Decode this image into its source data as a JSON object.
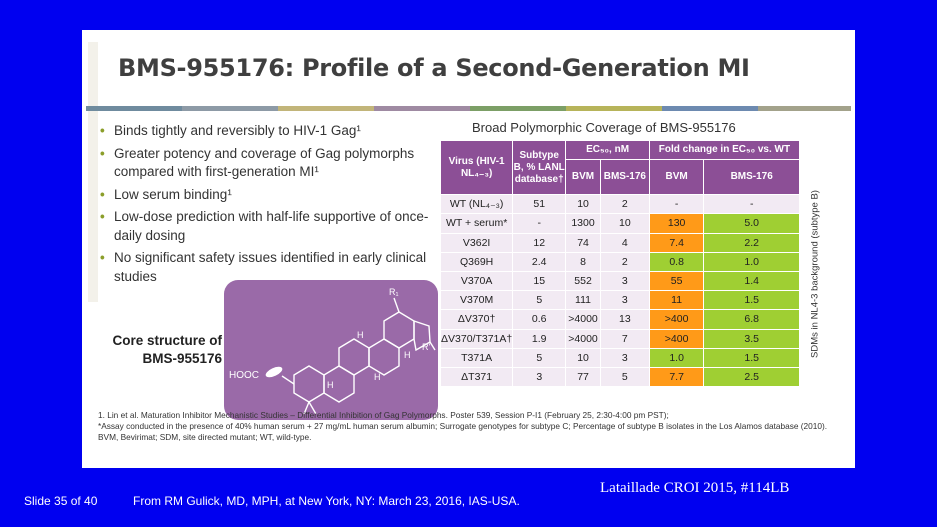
{
  "slide": {
    "title": "BMS-955176: Profile of a Second-Generation MI",
    "band_colors": [
      "#6f8b9e",
      "#8d9aa6",
      "#c2b57a",
      "#9f8aa2",
      "#7c9f66",
      "#b7b45a",
      "#6d8ab0",
      "#a3a28b"
    ],
    "bullets": [
      "Binds tightly and reversibly to HIV-1 Gag¹",
      "Greater potency and coverage of Gag polymorphs compared with first-generation MI¹",
      "Low serum binding¹",
      "Low-dose prediction with half-life supportive of once-daily dosing",
      "No significant safety issues identified in early clinical studies"
    ],
    "core_label": "Core structure of BMS-955176",
    "structure": {
      "hooc": "HOOC",
      "h": "H",
      "r1": "R₁",
      "r": "R'"
    },
    "table": {
      "title": "Broad Polymorphic Coverage of BMS-955176",
      "headers": {
        "virus": "Virus (HIV-1 NL₄₋₃)",
        "subtype": "Subtype B, % LANL database†",
        "ec50": "EC₅₀, nM",
        "fold": "Fold change in EC₅₀ vs. WT",
        "bvm": "BVM",
        "bms": "BMS-176",
        "bvm2": "BVM",
        "bms2": "BMS-176"
      },
      "rows": [
        [
          "WT (NL₄₋₃)",
          "51",
          "10",
          "2",
          "-",
          "-"
        ],
        [
          "WT + serum*",
          "-",
          "1300",
          "10",
          "130",
          "5.0"
        ],
        [
          "V362I",
          "12",
          "74",
          "4",
          "7.4",
          "2.2"
        ],
        [
          "Q369H",
          "2.4",
          "8",
          "2",
          "0.8",
          "1.0"
        ],
        [
          "V370A",
          "15",
          "552",
          "3",
          "55",
          "1.4"
        ],
        [
          "V370M",
          "5",
          "111",
          "3",
          "11",
          "1.5"
        ],
        [
          "ΔV370†",
          "0.6",
          ">4000",
          "13",
          ">400",
          "6.8"
        ],
        [
          "ΔV370/T371A†",
          "1.9",
          ">4000",
          "7",
          ">400",
          "3.5"
        ],
        [
          "T371A",
          "5",
          "10",
          "3",
          "1.0",
          "1.5"
        ],
        [
          "ΔT371",
          "3",
          "77",
          "5",
          "7.7",
          "2.5"
        ]
      ],
      "highlight_colors": {
        "orange": "#ff9a18",
        "green": "#9fcf33"
      },
      "side_label": "SDMs in NL4-3 background (subtype B)"
    },
    "footnote1": "1. Lin et al. Maturation Inhibitor Mechanistic Studies – Differential Inhibition of Gag Polymorphs. Poster 539, Session P-I1 (February 25, 2:30-4:00 pm PST);",
    "footnote2": "*Assay conducted in the presence of 40% human serum + 27 mg/mL human serum albumin; Surrogate genotypes for subtype C; Percentage of subtype B isolates in the Los Alamos database (2010). BVM, Bevirimat; SDM, site directed mutant; WT, wild-type."
  },
  "footer": {
    "slide_number": "Slide 35 of 40",
    "credit": "From RM Gulick, MD, MPH, at New York, NY: March 23, 2016, IAS-USA.",
    "citation": "Lataillade CROI 2015, #114LB"
  }
}
